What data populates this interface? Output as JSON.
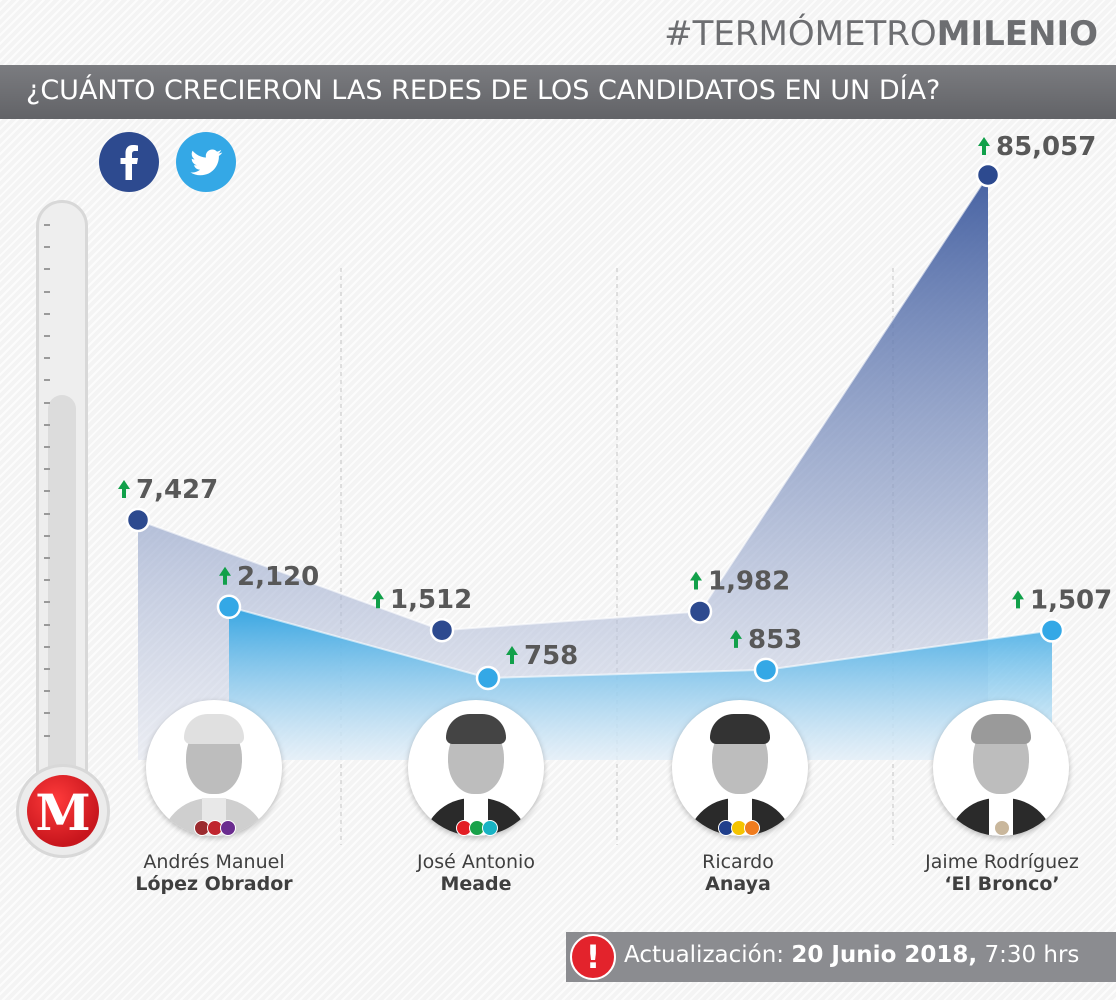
{
  "header": {
    "hashtag_light": "#TERMÓMETRO",
    "hashtag_bold": "MILENIO",
    "title": "¿CUÁNTO CRECIERON LAS REDES DE LOS CANDIDATOS EN UN DÍA?"
  },
  "logo_letter": "M",
  "icons": [
    "facebook-icon",
    "twitter-icon",
    "up-arrow-icon",
    "alert-icon",
    "thermometer-icon"
  ],
  "colors": {
    "facebook": "#2d4a8f",
    "twitter": "#34a8e6",
    "arrow": "#11a04a",
    "alert": "#e3232c"
  },
  "chart_data": {
    "type": "line",
    "categories": [
      "Andrés Manuel López Obrador",
      "José Antonio Meade",
      "Ricardo Anaya",
      "Jaime Rodríguez ‘El Bronco’"
    ],
    "series": [
      {
        "name": "Facebook",
        "values": [
          7427,
          1512,
          1982,
          85057
        ],
        "labels": [
          "7,427",
          "1,512",
          "1,982",
          "85,057"
        ]
      },
      {
        "name": "Twitter",
        "values": [
          2120,
          758,
          853,
          1507
        ],
        "labels": [
          "2,120",
          "758",
          "853",
          "1,507"
        ]
      }
    ],
    "note": "nonlinear vertical scale"
  },
  "candidates": [
    {
      "first": "Andrés Manuel",
      "last": "López Obrador",
      "party_colors": [
        "#9b2b2f",
        "#c0262f",
        "#6a2c8f"
      ]
    },
    {
      "first": "José Antonio",
      "last": "Meade",
      "party_colors": [
        "#e31e24",
        "#19a24a",
        "#18b3c4"
      ]
    },
    {
      "first": "Ricardo",
      "last": "Anaya",
      "party_colors": [
        "#203f8c",
        "#f5c400",
        "#f07c1e"
      ]
    },
    {
      "first": "Jaime Rodríguez",
      "last": "‘El Bronco’",
      "party_colors": [
        "#c9b79c"
      ]
    }
  ],
  "update": {
    "label": "Actualización:",
    "date": "20 Junio 2018,",
    "time": "7:30 hrs"
  }
}
